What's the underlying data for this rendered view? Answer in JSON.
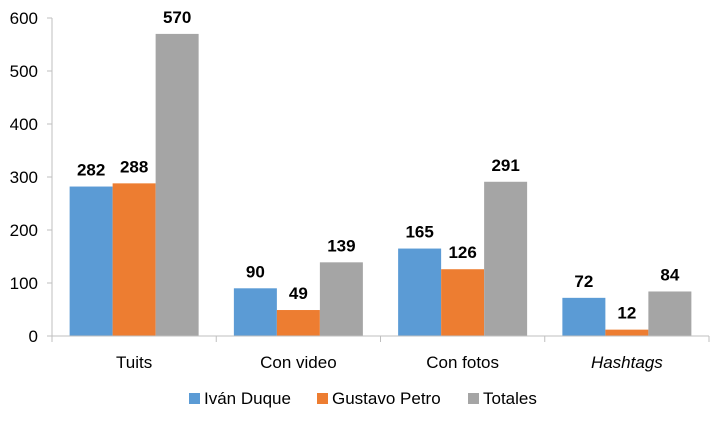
{
  "chart_data": {
    "type": "bar",
    "categories": [
      "Tuits",
      "Con video",
      "Con fotos",
      "Hashtags"
    ],
    "category_italic": [
      false,
      false,
      false,
      true
    ],
    "series": [
      {
        "name": "Iván Duque",
        "color": "#5B9BD5",
        "values": [
          282,
          90,
          165,
          72
        ]
      },
      {
        "name": "Gustavo Petro",
        "color": "#ED7D31",
        "values": [
          288,
          49,
          126,
          12
        ]
      },
      {
        "name": "Totales",
        "color": "#A5A5A5",
        "values": [
          570,
          139,
          291,
          84
        ]
      }
    ],
    "yticks": [
      0,
      100,
      200,
      300,
      400,
      500,
      600
    ],
    "ylim": [
      0,
      600
    ],
    "grid": false,
    "legend_position": "bottom"
  }
}
